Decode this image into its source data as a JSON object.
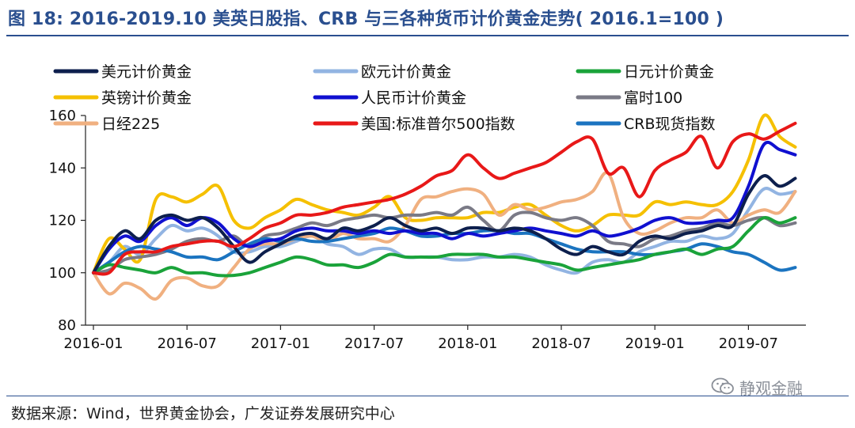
{
  "title": "图 18: 2016-2019.10 美英日股指、CRB 与三各种货币计价黄金走势( 2016.1=100 )",
  "source": "数据来源：Wind，世界黄金协会，广发证券发展研究中心",
  "watermark": "静观金融",
  "chart_data": {
    "type": "line",
    "ylim": [
      80,
      160
    ],
    "yticks": [
      80,
      100,
      120,
      140,
      160
    ],
    "xticks": [
      "2016-01",
      "2016-07",
      "2017-01",
      "2017-07",
      "2018-01",
      "2018-07",
      "2019-01",
      "2019-07"
    ],
    "x": [
      "2016-01",
      "2016-02",
      "2016-03",
      "2016-04",
      "2016-05",
      "2016-06",
      "2016-07",
      "2016-08",
      "2016-09",
      "2016-10",
      "2016-11",
      "2016-12",
      "2017-01",
      "2017-02",
      "2017-03",
      "2017-04",
      "2017-05",
      "2017-06",
      "2017-07",
      "2017-08",
      "2017-09",
      "2017-10",
      "2017-11",
      "2017-12",
      "2018-01",
      "2018-02",
      "2018-03",
      "2018-04",
      "2018-05",
      "2018-06",
      "2018-07",
      "2018-08",
      "2018-09",
      "2018-10",
      "2018-11",
      "2018-12",
      "2019-01",
      "2019-02",
      "2019-03",
      "2019-04",
      "2019-05",
      "2019-06",
      "2019-07",
      "2019-08",
      "2019-09",
      "2019-10"
    ],
    "series": [
      {
        "name": "美元计价黄金",
        "color": "#0d1f4d",
        "values": [
          100,
          110,
          116,
          113,
          120,
          122,
          120,
          121,
          117,
          110,
          104,
          108,
          111,
          114,
          115,
          113,
          117,
          116,
          118,
          121,
          118,
          116,
          117,
          115,
          117,
          117,
          116,
          117,
          116,
          113,
          109,
          107,
          110,
          108,
          107,
          112,
          114,
          113,
          115,
          116,
          118,
          118,
          130,
          137,
          133,
          136
        ]
      },
      {
        "name": "欧元计价黄金",
        "color": "#92b4e2",
        "values": [
          100,
          104,
          110,
          107,
          113,
          118,
          116,
          117,
          114,
          108,
          108,
          110,
          110,
          112,
          114,
          111,
          110,
          107,
          109,
          109,
          106,
          106,
          106,
          105,
          105,
          106,
          106,
          107,
          106,
          103,
          101,
          100,
          104,
          105,
          104,
          108,
          110,
          112,
          112,
          114,
          113,
          115,
          124,
          132,
          130,
          131
        ]
      },
      {
        "name": "日元计价黄金",
        "color": "#1aa33a",
        "values": [
          100,
          103,
          102,
          101,
          100,
          102,
          100,
          100,
          99,
          99,
          100,
          102,
          104,
          106,
          105,
          103,
          103,
          102,
          104,
          107,
          106,
          106,
          106,
          107,
          107,
          107,
          106,
          106,
          105,
          104,
          103,
          101,
          102,
          103,
          104,
          105,
          107,
          108,
          109,
          107,
          109,
          110,
          116,
          121,
          119,
          121
        ]
      },
      {
        "name": "英镑计价黄金",
        "color": "#f5c000",
        "values": [
          100,
          113,
          109,
          105,
          128,
          129,
          127,
          130,
          133,
          120,
          117,
          121,
          124,
          128,
          126,
          124,
          123,
          122,
          125,
          129,
          121,
          120,
          121,
          121,
          121,
          123,
          123,
          125,
          126,
          122,
          118,
          116,
          118,
          122,
          122,
          122,
          127,
          126,
          127,
          126,
          126,
          131,
          143,
          160,
          152,
          148
        ]
      },
      {
        "name": "人民币计价黄金",
        "color": "#1010d0",
        "values": [
          100,
          109,
          114,
          112,
          118,
          121,
          118,
          121,
          119,
          113,
          110,
          112,
          113,
          116,
          117,
          116,
          116,
          115,
          116,
          115,
          116,
          115,
          115,
          113,
          115,
          114,
          115,
          116,
          117,
          116,
          115,
          114,
          116,
          114,
          115,
          117,
          120,
          121,
          119,
          119,
          120,
          121,
          133,
          149,
          147,
          145
        ]
      },
      {
        "name": "富时100",
        "color": "#7a7a86",
        "values": [
          100,
          101,
          105,
          106,
          107,
          109,
          112,
          113,
          112,
          114,
          110,
          114,
          115,
          117,
          119,
          118,
          120,
          121,
          122,
          121,
          122,
          122,
          123,
          122,
          125,
          120,
          116,
          122,
          123,
          121,
          120,
          121,
          118,
          112,
          111,
          110,
          113,
          114,
          116,
          117,
          119,
          118,
          120,
          121,
          118,
          119
        ]
      },
      {
        "name": "日经225",
        "color": "#f0b080",
        "values": [
          100,
          92,
          96,
          94,
          90,
          97,
          98,
          95,
          95,
          102,
          109,
          111,
          111,
          113,
          114,
          112,
          115,
          113,
          113,
          112,
          118,
          128,
          129,
          131,
          132,
          130,
          122,
          126,
          124,
          125,
          127,
          128,
          131,
          138,
          121,
          115,
          116,
          119,
          121,
          121,
          124,
          119,
          122,
          124,
          123,
          131
        ]
      },
      {
        "name": "美国:标准普尔500指数",
        "color": "#e81818",
        "values": [
          100,
          100,
          107,
          108,
          108,
          110,
          111,
          112,
          112,
          110,
          113,
          117,
          119,
          122,
          122,
          123,
          125,
          126,
          127,
          128,
          130,
          133,
          137,
          139,
          145,
          140,
          136,
          138,
          140,
          142,
          146,
          150,
          151,
          138,
          140,
          129,
          139,
          143,
          146,
          152,
          140,
          150,
          153,
          151,
          154,
          157
        ]
      },
      {
        "name": "CRB现货指数",
        "color": "#1b74c0",
        "values": [
          100,
          104,
          108,
          110,
          109,
          108,
          106,
          106,
          105,
          108,
          111,
          113,
          112,
          113,
          112,
          112,
          113,
          114,
          115,
          117,
          116,
          114,
          114,
          115,
          115,
          116,
          116,
          115,
          115,
          113,
          111,
          109,
          108,
          108,
          108,
          107,
          107,
          108,
          109,
          111,
          110,
          108,
          107,
          104,
          101,
          102
        ]
      }
    ]
  }
}
